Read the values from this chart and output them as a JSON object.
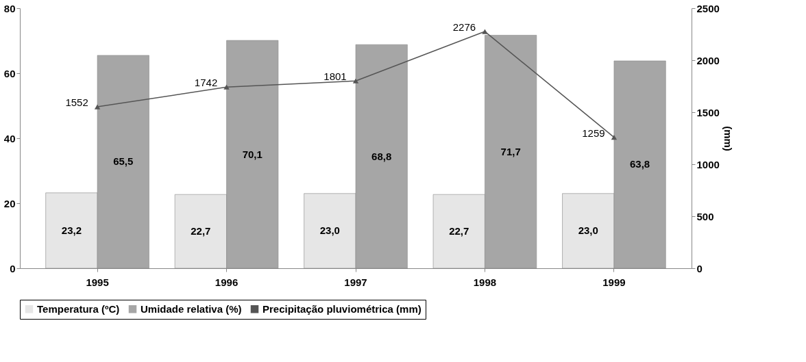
{
  "chart_data": {
    "type": "bar",
    "categories": [
      "1995",
      "1996",
      "1997",
      "1998",
      "1999"
    ],
    "series": [
      {
        "name": "Temperatura (ºC)",
        "color": "#e6e6e6",
        "values": [
          23.2,
          22.7,
          23.0,
          22.7,
          23.0
        ],
        "value_labels": [
          "23,2",
          "22,7",
          "23,0",
          "22,7",
          "23,0"
        ]
      },
      {
        "name": "Umidade relativa (%)",
        "color": "#a6a6a6",
        "values": [
          65.5,
          70.1,
          68.8,
          71.7,
          63.8
        ],
        "value_labels": [
          "65,5",
          "70,1",
          "68,8",
          "71,7",
          "63,8"
        ]
      },
      {
        "name": "Precipitação pluviométrica (mm)",
        "type": "line",
        "axis": "y2",
        "color": "#555555",
        "marker": "triangle",
        "values": [
          1552,
          1742,
          1801,
          2276,
          1259
        ],
        "value_labels": [
          "1552",
          "1742",
          "1801",
          "2276",
          "1259"
        ]
      }
    ],
    "ylim": [
      0,
      80
    ],
    "yticks": [
      0,
      20,
      40,
      60,
      80
    ],
    "y2lim": [
      0,
      2500
    ],
    "y2ticks": [
      0,
      500,
      1000,
      1500,
      2000,
      2500
    ],
    "y2label": "(mm)",
    "grid": false,
    "legend": "bottom"
  }
}
